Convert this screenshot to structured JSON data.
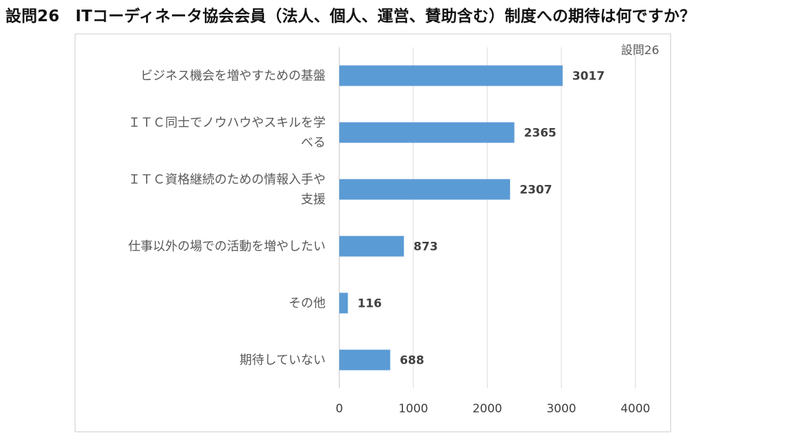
{
  "page": {
    "title": "設問26　ITコーディネータ協会会員（法人、個人、運営、賛助含む）制度への期待は何ですか？"
  },
  "chart_data": {
    "type": "bar",
    "orientation": "horizontal",
    "categories": [
      [
        "ビジネス機会を増やすための基盤"
      ],
      [
        "ＩＴＣ同士でノウハウやスキルを学",
        "べる"
      ],
      [
        "ＩＴＣ資格継続のための情報入手や",
        "支援"
      ],
      [
        "仕事以外の場での活動を増やしたい"
      ],
      [
        "その他"
      ],
      [
        "期待していない"
      ]
    ],
    "series": [
      {
        "name": "設問26",
        "values": [
          3017,
          2365,
          2307,
          873,
          116,
          688
        ],
        "color": "#5b9bd5"
      }
    ],
    "xlim": [
      0,
      4000
    ],
    "ticks": [
      0,
      1000,
      2000,
      3000,
      4000
    ],
    "grid": true,
    "legend_position": "top-right",
    "data_labels": true
  }
}
